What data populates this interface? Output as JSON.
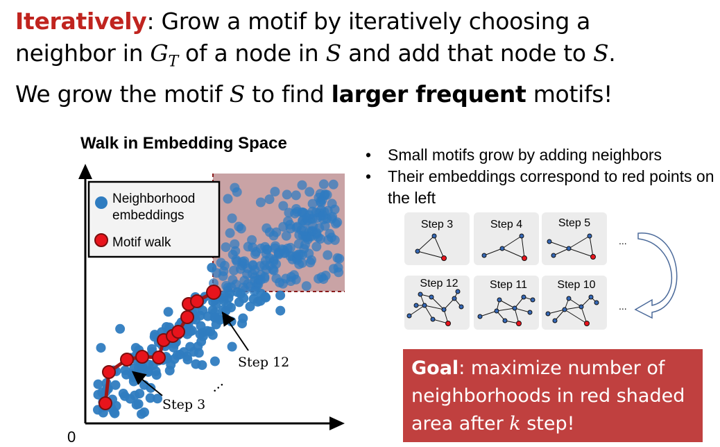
{
  "heading": {
    "line1_keyword": "Iteratively",
    "line1_rest": ": Grow a motif by iteratively choosing a",
    "line2_a": "neighbor in ",
    "line2_g": "G",
    "line2_t": "T",
    "line2_b": " of a node in ",
    "line2_s1": "S",
    "line2_c": " and add that node to ",
    "line2_s2": "S",
    "line2_d": ".",
    "line3_a": "We grow the motif ",
    "line3_s": "S",
    "line3_b": " to find ",
    "line3_bold": "larger frequent",
    "line3_c": " motifs!"
  },
  "plot": {
    "title": "Walk in Embedding Space",
    "origin_label": "0",
    "legend_neighborhood": "Neighborhood",
    "legend_neighborhood2": "embeddings",
    "legend_motif": "Motif walk",
    "annotation_step12": "Step 12",
    "annotation_step3": "Step 3",
    "ellipsis": "…",
    "colors": {
      "points": "#2f7cc0",
      "walk": "#e8141c",
      "walk_line": "#a01616",
      "shade": "#c9a3a5"
    }
  },
  "bullets": [
    "Small motifs grow by adding neighbors",
    "Their embeddings correspond to red points on the left"
  ],
  "steps_top": [
    "Step 3",
    "Step 4",
    "Step 5"
  ],
  "steps_bottom": [
    "Step 12",
    "Step 11",
    "Step 10"
  ],
  "steps_ellipsis": "...",
  "goal": {
    "bold": "Goal",
    "text1": ": maximize number of",
    "text2": "neighborhoods in red shaded",
    "text3a": "area after ",
    "k": "k",
    "text3b": " step!"
  }
}
